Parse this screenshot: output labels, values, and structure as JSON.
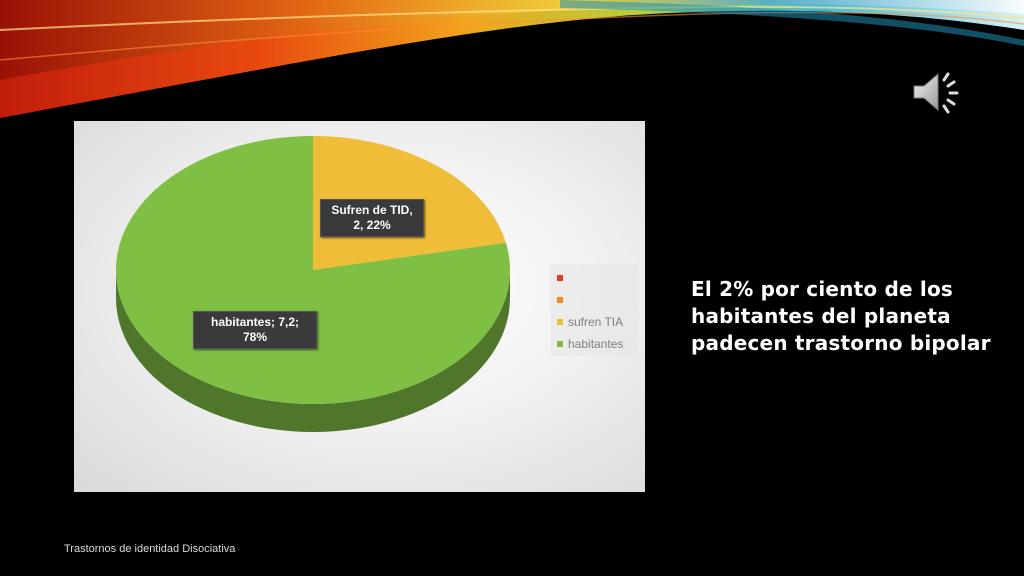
{
  "slide": {
    "caption": "El 2% por ciento de los habitantes del planeta padecen trastorno bipolar",
    "footer": "Trastornos de identidad Disociativa"
  },
  "colors": {
    "background": "#000000",
    "slice_tid": "#f0bd38",
    "slice_habitantes": "#7fbf44",
    "legend_red": "#e03a2f",
    "legend_orange": "#f08a24"
  },
  "chart_data": {
    "type": "pie",
    "style": "3d",
    "slices": [
      {
        "name": "Sufren de TID",
        "value": 2,
        "percent": 22,
        "color": "#f0bd38",
        "label": "Sufren de TID, 2, 22%"
      },
      {
        "name": "habitantes",
        "value": 7.2,
        "percent": 78,
        "color": "#7fbf44",
        "label": "habitantes; 7,2; 78%"
      }
    ],
    "legend": {
      "position": "right",
      "items": [
        {
          "label": "",
          "color": "#e03a2f"
        },
        {
          "label": "",
          "color": "#f08a24"
        },
        {
          "label": "sufren TIA",
          "color": "#f0bd38"
        },
        {
          "label": "habitantes",
          "color": "#7fbf44"
        }
      ]
    }
  }
}
